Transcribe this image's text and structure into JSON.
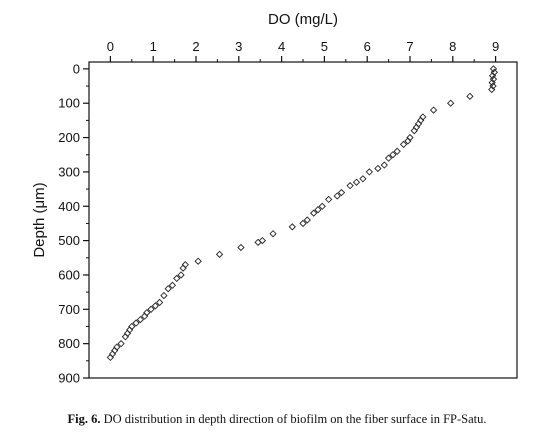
{
  "chart_data": {
    "type": "scatter",
    "xlabel": "DO (mg/L)",
    "ylabel": "Depth (μm)",
    "x_axis_position": "top",
    "y_axis_inverted": true,
    "xlim": [
      -0.5,
      9.5
    ],
    "ylim": [
      -20,
      900
    ],
    "xticks": [
      0,
      1,
      2,
      3,
      4,
      5,
      6,
      7,
      8,
      9
    ],
    "yticks": [
      0,
      100,
      200,
      300,
      400,
      500,
      600,
      700,
      800,
      900
    ],
    "grid": false,
    "legend": false,
    "marker": "open-diamond",
    "series": [
      {
        "points": [
          [
            8.95,
            0
          ],
          [
            8.97,
            10
          ],
          [
            8.93,
            20
          ],
          [
            8.95,
            30
          ],
          [
            8.92,
            40
          ],
          [
            8.94,
            50
          ],
          [
            8.91,
            60
          ],
          [
            8.4,
            80
          ],
          [
            7.95,
            100
          ],
          [
            7.55,
            120
          ],
          [
            7.3,
            140
          ],
          [
            7.25,
            150
          ],
          [
            7.2,
            160
          ],
          [
            7.15,
            170
          ],
          [
            7.1,
            180
          ],
          [
            7.0,
            200
          ],
          [
            6.95,
            210
          ],
          [
            6.85,
            220
          ],
          [
            6.7,
            240
          ],
          [
            6.6,
            250
          ],
          [
            6.5,
            260
          ],
          [
            6.4,
            280
          ],
          [
            6.25,
            290
          ],
          [
            6.05,
            300
          ],
          [
            5.9,
            320
          ],
          [
            5.75,
            330
          ],
          [
            5.6,
            340
          ],
          [
            5.4,
            360
          ],
          [
            5.3,
            370
          ],
          [
            5.1,
            380
          ],
          [
            4.95,
            400
          ],
          [
            4.85,
            410
          ],
          [
            4.75,
            420
          ],
          [
            4.6,
            440
          ],
          [
            4.5,
            450
          ],
          [
            4.25,
            460
          ],
          [
            3.8,
            480
          ],
          [
            3.55,
            500
          ],
          [
            3.45,
            505
          ],
          [
            3.05,
            520
          ],
          [
            2.55,
            540
          ],
          [
            2.05,
            560
          ],
          [
            1.75,
            570
          ],
          [
            1.7,
            580
          ],
          [
            1.65,
            600
          ],
          [
            1.55,
            610
          ],
          [
            1.45,
            630
          ],
          [
            1.35,
            640
          ],
          [
            1.25,
            660
          ],
          [
            1.15,
            680
          ],
          [
            1.05,
            690
          ],
          [
            0.95,
            700
          ],
          [
            0.85,
            710
          ],
          [
            0.8,
            720
          ],
          [
            0.7,
            730
          ],
          [
            0.6,
            740
          ],
          [
            0.5,
            750
          ],
          [
            0.45,
            760
          ],
          [
            0.4,
            770
          ],
          [
            0.35,
            780
          ],
          [
            0.25,
            800
          ],
          [
            0.15,
            810
          ],
          [
            0.1,
            820
          ],
          [
            0.05,
            830
          ],
          [
            0.0,
            840
          ]
        ]
      }
    ]
  },
  "caption": {
    "label": "Fig. 6.",
    "text": " DO distribution in depth direction of biofilm on the fiber surface in FP-Satu."
  }
}
